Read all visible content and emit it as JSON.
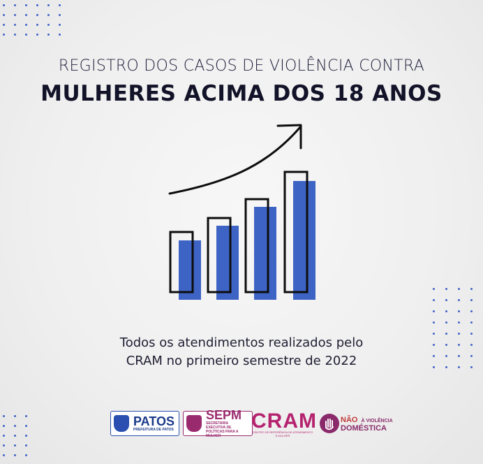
{
  "header": {
    "line1": "REGISTRO DOS CASOS DE VIOLÊNCIA CONTRA",
    "line2": "MULHERES ACIMA DOS 18 ANOS"
  },
  "illustration": {
    "bar_count": 4,
    "accent_color": "#3d63c4",
    "outline_color": "#0d0d0d",
    "arrow_icon": "trend-up-arrow-icon"
  },
  "description": {
    "line1": "Todos os atendimentos realizados pelo",
    "line2": "CRAM no primeiro semestre de 2022"
  },
  "logos": {
    "patos": {
      "name": "PATOS",
      "tagline": "PREFEITURA DE PATOS"
    },
    "sepm": {
      "name": "SEPM",
      "tagline": "SECRETARIA EXECUTIVA DE POLÍTICAS PARA A MULHER"
    },
    "cram": {
      "name": "CRAM",
      "tagline": "CENTRO DE REFERÊNCIA DE ATENDIMENTO À MULHER"
    },
    "campaign": {
      "word1": "NÃO",
      "word2": "À VIOLÊNCIA",
      "word3": "DOMÉSTICA"
    }
  }
}
